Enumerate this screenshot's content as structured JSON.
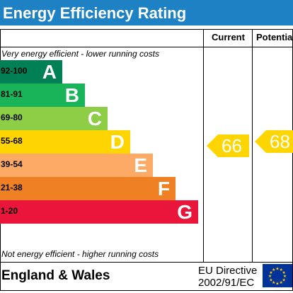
{
  "header": {
    "title": "Energy Efficiency Rating",
    "bg_color": "#1d81c4"
  },
  "columns": {
    "current": "Current",
    "potential": "Potential"
  },
  "notes": {
    "top": "Very energy efficient - lower running costs",
    "bottom": "Not energy efficient - higher running costs"
  },
  "bands": [
    {
      "range": "92-100",
      "letter": "A",
      "color": "#008054"
    },
    {
      "range": "81-91",
      "letter": "B",
      "color": "#19b459"
    },
    {
      "range": "69-80",
      "letter": "C",
      "color": "#8dce46"
    },
    {
      "range": "55-68",
      "letter": "D",
      "color": "#ffd500"
    },
    {
      "range": "39-54",
      "letter": "E",
      "color": "#fcaa65"
    },
    {
      "range": "21-38",
      "letter": "F",
      "color": "#ef8023"
    },
    {
      "range": "1-20",
      "letter": "G",
      "color": "#e9153b"
    }
  ],
  "ratings": {
    "current": {
      "value": "66",
      "band": "D",
      "color": "#ffd500"
    },
    "potential": {
      "value": "68",
      "band": "D",
      "color": "#ffd500"
    }
  },
  "footer": {
    "region": "England & Wales",
    "directive_line1": "EU Directive",
    "directive_line2": "2002/91/EC",
    "flag_icon": "eu-flag-icon",
    "flag_color": "#003399",
    "star_color": "#ffcc00"
  }
}
